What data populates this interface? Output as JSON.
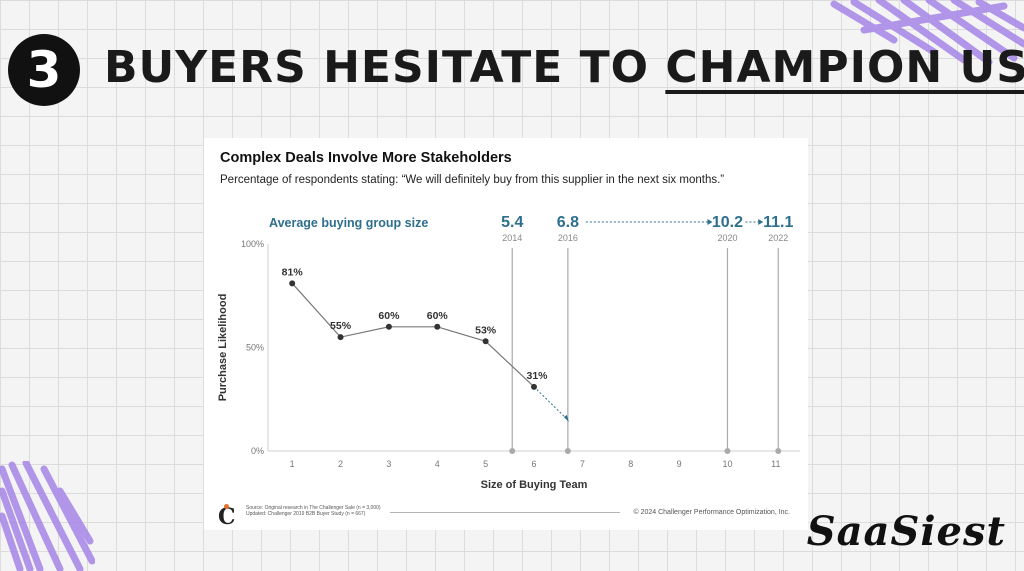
{
  "header": {
    "number": "3",
    "headline_plain": "BUYERS HESITATE TO ",
    "headline_underlined": "CHAMPION US"
  },
  "card": {
    "title": "Complex Deals Involve More Stakeholders",
    "subtitle": "Percentage of respondents stating: “We will definitely buy from this supplier in the next six months.”",
    "footer_logo": "C",
    "source_line1": "Source: Original research in The Challenger Sale (n = 3,000)",
    "source_line2": "Updated: Challenger 2019 B2B Buyer Study (n = 667)",
    "copyright": "© 2024 Challenger Performance Optimization, Inc."
  },
  "brand": "SaaSiest",
  "colors": {
    "accent_blue": "#2e6f8e",
    "line_gray": "#777777",
    "point_dark": "#333333",
    "scribble_purple": "#a98be8"
  },
  "chart_data": {
    "type": "line",
    "title": "Complex Deals Involve More Stakeholders",
    "subtitle": "Percentage of respondents stating: “We will definitely buy from this supplier in the next six months.”",
    "xlabel": "Size of Buying Team",
    "ylabel": "Purchase Likelihood",
    "x_ticks": [
      1,
      2,
      3,
      4,
      5,
      6,
      7,
      8,
      9,
      10,
      11
    ],
    "y_ticks": [
      "0%",
      "50%",
      "100%"
    ],
    "ylim": [
      0,
      100
    ],
    "xlim": [
      0.5,
      11.5
    ],
    "series": [
      {
        "x": [
          1,
          2,
          3,
          4,
          5,
          6
        ],
        "y": [
          81,
          55,
          60,
          60,
          53,
          31
        ],
        "labels": [
          "81%",
          "55%",
          "60%",
          "60%",
          "53%",
          "31%"
        ]
      }
    ],
    "projection": {
      "from": [
        6,
        31
      ],
      "to": [
        6.7,
        15
      ]
    },
    "buying_group": {
      "label": "Average buying group size",
      "markers": [
        {
          "value": "5.4",
          "year": "2014",
          "x": 5.55
        },
        {
          "value": "6.8",
          "year": "2016",
          "x": 6.7
        },
        {
          "value": "10.2",
          "year": "2020",
          "x": 10.0
        },
        {
          "value": "11.1",
          "year": "2022",
          "x": 11.05
        }
      ]
    }
  }
}
